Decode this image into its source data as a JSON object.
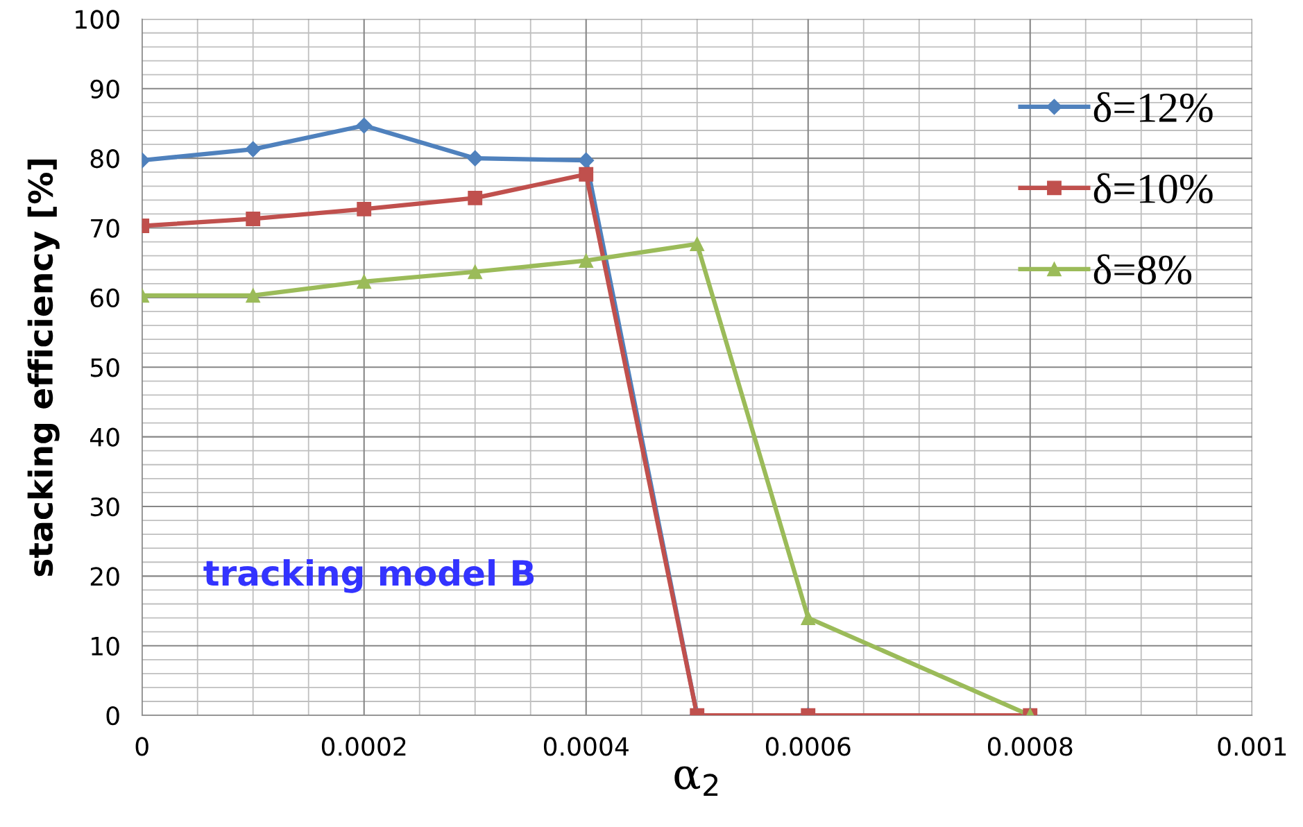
{
  "chart_data": {
    "type": "line",
    "xlabel": "α$_{2}$",
    "ylabel": "stacking efficiency [%]",
    "x": [
      0,
      0.0001,
      0.0002,
      0.0003,
      0.0004,
      0.0005,
      0.0006,
      0.0008
    ],
    "series": [
      {
        "name": "δ=12%",
        "color": "#4f81bd",
        "marker": "diamond",
        "values": [
          79.7,
          81.3,
          84.7,
          80,
          79.7,
          0,
          0,
          0
        ]
      },
      {
        "name": "δ=10%",
        "color": "#c0504d",
        "marker": "square",
        "values": [
          70.3,
          71.3,
          72.7,
          74.3,
          77.7,
          0,
          0,
          0
        ]
      },
      {
        "name": "δ=8%",
        "color": "#9bbb59",
        "marker": "triangle",
        "values": [
          60.3,
          60.3,
          62.3,
          63.7,
          65.3,
          67.7,
          14,
          0
        ]
      }
    ],
    "xlim": [
      0,
      0.001
    ],
    "xticks": [
      0,
      0.0002,
      0.0004,
      0.0006,
      0.0008,
      0.001
    ],
    "ylim": [
      0,
      100
    ],
    "yticks": [
      0,
      10,
      20,
      30,
      40,
      50,
      60,
      70,
      80,
      90,
      100
    ],
    "grid": true,
    "legend": "top right",
    "line_style": "solid",
    "annotations": [
      "tracking model B"
    ]
  }
}
